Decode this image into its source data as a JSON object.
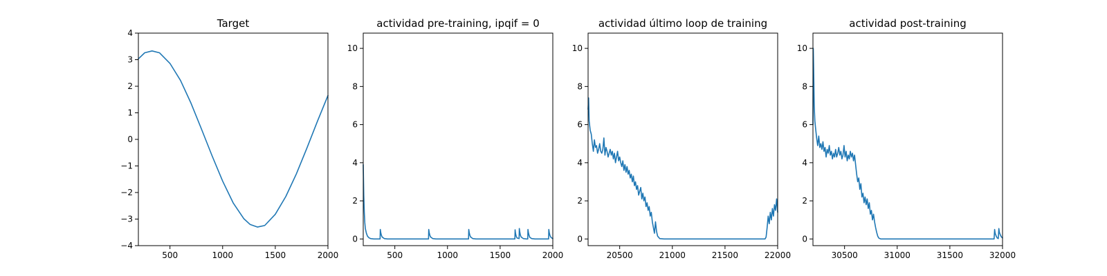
{
  "chart_data": [
    {
      "type": "line",
      "title": "Target",
      "xlabel": "",
      "ylabel": "",
      "xlim": [
        200,
        2000
      ],
      "ylim": [
        -4,
        4
      ],
      "xticks": [
        500,
        1000,
        1500,
        2000
      ],
      "yticks": [
        -4,
        -3,
        -2,
        -1,
        0,
        1,
        2,
        3,
        4
      ],
      "ytick_labels": [
        "−4",
        "−3",
        "−2",
        "−1",
        "0",
        "1",
        "2",
        "3",
        "4"
      ],
      "grid": false,
      "series": [
        {
          "color": "#1f77b4",
          "x": [
            200,
            260,
            330,
            400,
            500,
            600,
            700,
            800,
            900,
            1000,
            1100,
            1200,
            1260,
            1330,
            1400,
            1500,
            1600,
            1700,
            1800,
            1900,
            2000
          ],
          "y": [
            3.03,
            3.26,
            3.33,
            3.26,
            2.86,
            2.22,
            1.36,
            0.38,
            -0.62,
            -1.57,
            -2.39,
            -2.98,
            -3.2,
            -3.3,
            -3.24,
            -2.82,
            -2.15,
            -1.3,
            -0.33,
            0.68,
            1.65
          ]
        }
      ]
    },
    {
      "type": "line",
      "title": "actividad pre-training, ipqif = 0",
      "xlabel": "",
      "ylabel": "",
      "xlim": [
        200,
        2000
      ],
      "ylim": [
        -0.35,
        10.8
      ],
      "xticks": [
        500,
        1000,
        1500,
        2000
      ],
      "yticks": [
        0,
        2,
        4,
        6,
        8,
        10
      ],
      "ytick_labels": [
        "0",
        "2",
        "4",
        "6",
        "8",
        "10"
      ],
      "grid": false,
      "series": [
        {
          "color": "#1f77b4",
          "x": [
            200,
            205,
            210,
            215,
            220,
            230,
            240,
            255,
            270,
            300,
            360,
            362,
            366,
            372,
            380,
            400,
            430,
            820,
            822,
            826,
            832,
            840,
            860,
            890,
            1200,
            1202,
            1206,
            1212,
            1220,
            1240,
            1270,
            1640,
            1642,
            1646,
            1652,
            1660,
            1680,
            1682,
            1686,
            1692,
            1700,
            1720,
            1750,
            1762,
            1764,
            1768,
            1774,
            1782,
            1800,
            1830,
            1960,
            1962,
            1966,
            1972,
            1980,
            1995,
            2000
          ],
          "y": [
            3.9,
            2.3,
            1.4,
            0.85,
            0.55,
            0.3,
            0.15,
            0.06,
            0.02,
            0.0,
            0.0,
            0.5,
            0.35,
            0.2,
            0.1,
            0.02,
            0.0,
            0.0,
            0.5,
            0.35,
            0.2,
            0.1,
            0.02,
            0.0,
            0.0,
            0.5,
            0.35,
            0.2,
            0.1,
            0.02,
            0.0,
            0.0,
            0.48,
            0.3,
            0.15,
            0.05,
            0.02,
            0.55,
            0.38,
            0.2,
            0.1,
            0.02,
            0.0,
            0.0,
            0.5,
            0.35,
            0.2,
            0.08,
            0.02,
            0.0,
            0.0,
            0.5,
            0.35,
            0.2,
            0.1,
            0.03,
            0.02
          ]
        }
      ]
    },
    {
      "type": "line",
      "title": "actividad último loop de training",
      "xlabel": "",
      "ylabel": "",
      "xlim": [
        20200,
        22000
      ],
      "ylim": [
        -0.35,
        10.8
      ],
      "xticks": [
        20500,
        21000,
        21500,
        22000
      ],
      "yticks": [
        0,
        2,
        4,
        6,
        8,
        10
      ],
      "ytick_labels": [
        "0",
        "2",
        "4",
        "6",
        "8",
        "10"
      ],
      "grid": false,
      "series": [
        {
          "color": "#1f77b4",
          "x": [
            20200,
            20205,
            20210,
            20220,
            20230,
            20240,
            20250,
            20260,
            20270,
            20280,
            20290,
            20300,
            20310,
            20320,
            20330,
            20340,
            20350,
            20360,
            20370,
            20380,
            20390,
            20400,
            20410,
            20420,
            20430,
            20440,
            20450,
            20460,
            20470,
            20480,
            20490,
            20500,
            20510,
            20520,
            20530,
            20540,
            20550,
            20560,
            20570,
            20580,
            20590,
            20600,
            20610,
            20620,
            20630,
            20640,
            20650,
            20660,
            20670,
            20680,
            20690,
            20700,
            20710,
            20720,
            20730,
            20740,
            20750,
            20760,
            20770,
            20780,
            20790,
            20800,
            20810,
            20820,
            20830,
            20840,
            20850,
            20860,
            20880,
            20920,
            21000,
            21200,
            21400,
            21600,
            21800,
            21880,
            21890,
            21900,
            21910,
            21920,
            21930,
            21940,
            21950,
            21960,
            21970,
            21980,
            21990,
            22000
          ],
          "y": [
            6.8,
            7.4,
            6.2,
            5.7,
            5.5,
            5.0,
            4.6,
            5.2,
            4.8,
            4.9,
            4.5,
            4.7,
            5.0,
            4.6,
            4.5,
            4.7,
            5.3,
            4.4,
            4.8,
            4.6,
            4.3,
            4.5,
            4.7,
            4.4,
            4.6,
            4.2,
            4.5,
            4.0,
            4.3,
            4.6,
            4.1,
            4.3,
            4.0,
            3.8,
            4.1,
            3.6,
            3.9,
            3.5,
            3.8,
            3.4,
            3.6,
            3.2,
            3.4,
            3.0,
            3.3,
            2.8,
            3.0,
            2.6,
            2.8,
            2.3,
            2.5,
            2.7,
            2.1,
            2.4,
            2.0,
            2.2,
            1.7,
            1.9,
            1.5,
            1.7,
            1.2,
            1.4,
            0.9,
            0.6,
            0.3,
            0.9,
            0.4,
            0.15,
            0.02,
            0.0,
            0.0,
            0.0,
            0.0,
            0.0,
            0.0,
            0.0,
            0.1,
            0.6,
            1.2,
            0.8,
            1.4,
            1.0,
            1.6,
            1.2,
            1.8,
            1.5,
            2.1,
            1.4
          ]
        }
      ]
    },
    {
      "type": "line",
      "title": "actividad post-training",
      "xlabel": "",
      "ylabel": "",
      "xlim": [
        30200,
        32000
      ],
      "ylim": [
        -0.35,
        10.8
      ],
      "xticks": [
        30500,
        31000,
        31500,
        32000
      ],
      "yticks": [
        0,
        2,
        4,
        6,
        8,
        10
      ],
      "ytick_labels": [
        "0",
        "2",
        "4",
        "6",
        "8",
        "10"
      ],
      "grid": false,
      "series": [
        {
          "color": "#1f77b4",
          "x": [
            30200,
            30203,
            30207,
            30212,
            30218,
            30225,
            30235,
            30245,
            30255,
            30265,
            30275,
            30285,
            30295,
            30305,
            30315,
            30325,
            30335,
            30345,
            30355,
            30365,
            30375,
            30385,
            30395,
            30405,
            30415,
            30425,
            30435,
            30445,
            30455,
            30465,
            30475,
            30485,
            30495,
            30505,
            30515,
            30525,
            30535,
            30545,
            30555,
            30565,
            30575,
            30585,
            30595,
            30605,
            30615,
            30625,
            30635,
            30645,
            30655,
            30665,
            30675,
            30685,
            30695,
            30705,
            30715,
            30725,
            30735,
            30745,
            30755,
            30765,
            30775,
            30785,
            30795,
            30805,
            30815,
            30825,
            30835,
            30845,
            30860,
            30880,
            30920,
            31000,
            31200,
            31400,
            31600,
            31800,
            31920,
            31925,
            31930,
            31940,
            31950,
            31960,
            31965,
            31970,
            31980,
            31990,
            32000
          ],
          "y": [
            6.0,
            10.0,
            8.8,
            7.0,
            6.2,
            5.8,
            5.3,
            4.9,
            5.4,
            4.8,
            5.0,
            4.7,
            5.1,
            4.6,
            4.8,
            4.3,
            4.7,
            4.5,
            4.9,
            4.4,
            4.6,
            4.2,
            4.5,
            4.3,
            4.7,
            4.3,
            4.5,
            4.8,
            4.4,
            4.6,
            4.2,
            4.4,
            4.9,
            4.3,
            4.6,
            4.1,
            4.4,
            4.2,
            4.6,
            4.3,
            4.5,
            4.1,
            4.4,
            3.9,
            3.4,
            3.0,
            3.2,
            2.6,
            2.9,
            2.2,
            2.4,
            1.9,
            2.2,
            1.8,
            2.1,
            1.6,
            1.9,
            1.3,
            1.5,
            1.0,
            1.3,
            0.9,
            0.6,
            0.35,
            0.15,
            0.05,
            0.02,
            0.0,
            0.0,
            0.0,
            0.0,
            0.0,
            0.0,
            0.0,
            0.0,
            0.0,
            0.0,
            0.5,
            0.3,
            0.15,
            0.05,
            0.02,
            0.55,
            0.35,
            0.2,
            0.1,
            0.05
          ]
        }
      ]
    }
  ]
}
